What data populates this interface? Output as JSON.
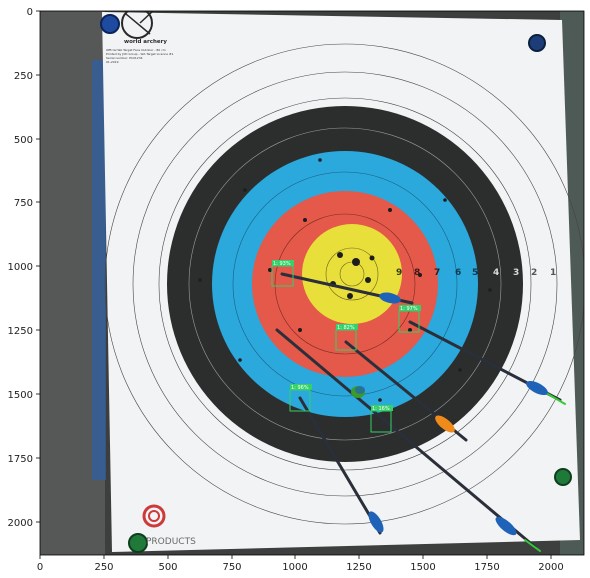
{
  "axes": {
    "x_ticks": [
      "0",
      "250",
      "500",
      "750",
      "1000",
      "1250",
      "1500",
      "1750",
      "2000"
    ],
    "y_ticks": [
      "0",
      "250",
      "500",
      "750",
      "1000",
      "1250",
      "1500",
      "1750",
      "2000"
    ],
    "x_range": [
      0,
      2130
    ],
    "y_range": [
      2130,
      0
    ]
  },
  "target_face": {
    "brand": "world archery",
    "small_print": [
      "Official WA Target Face Outdoor - 80 cm",
      "Printed by JVD Group - WA Target Licence #1",
      "Serial number: PC01234",
      "01-2019"
    ],
    "sponsor_text": "PRODUCTS",
    "ring_numbers": [
      "9",
      "8",
      "7",
      "6",
      "5",
      "4",
      "3",
      "2",
      "1"
    ],
    "colors": {
      "white": "#f2f3f4",
      "black": "#2b2e2c",
      "blue": "#2ba8dc",
      "red": "#e4594a",
      "yellow": "#e8df3a",
      "detection_box": "#35d06a",
      "background_dark": "#3d3f3f"
    }
  },
  "detections": [
    {
      "label": "1: 93%"
    },
    {
      "label": "1: 97%"
    },
    {
      "label": "1: 82%"
    },
    {
      "label": "1: 96%"
    },
    {
      "label": "1: 16%"
    }
  ]
}
